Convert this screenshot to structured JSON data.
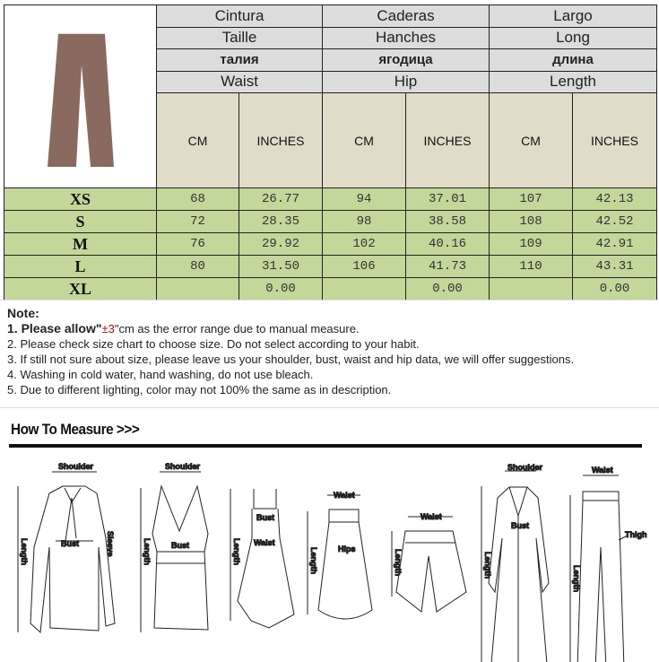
{
  "table": {
    "headers": {
      "spanish": [
        "Cintura",
        "Caderas",
        "Largo"
      ],
      "french": [
        "Taille",
        "Hanches",
        "Long"
      ],
      "russian": [
        "талия",
        "ягодица",
        "длина"
      ],
      "english": [
        "Waist",
        "Hip",
        "Length"
      ]
    },
    "units": [
      "CM",
      "INCHES",
      "CM",
      "INCHES",
      "CM",
      "INCHES"
    ],
    "rows": [
      {
        "size": "XS",
        "values": [
          "68",
          "26.77",
          "94",
          "37.01",
          "107",
          "42.13"
        ]
      },
      {
        "size": "S",
        "values": [
          "72",
          "28.35",
          "98",
          "38.58",
          "108",
          "42.52"
        ]
      },
      {
        "size": "M",
        "values": [
          "76",
          "29.92",
          "102",
          "40.16",
          "109",
          "42.91"
        ]
      },
      {
        "size": "L",
        "values": [
          "80",
          "31.50",
          "106",
          "41.73",
          "110",
          "43.31"
        ]
      },
      {
        "size": "XL",
        "values": [
          "",
          "0.00",
          "",
          "0.00",
          "",
          "0.00"
        ]
      }
    ],
    "colors": {
      "header": "#dcdcdc",
      "units": "#e0dcc8",
      "rows": "#c4d79b",
      "product": "#8a6a5f"
    }
  },
  "notes": {
    "title": "Note:",
    "line1_bold": "1. Please allow\"",
    "line1_red": "±3",
    "line1_rest": "\"cm as the error range due to manual measure.",
    "lines": [
      "2. Please check size chart to choose size. Do not select according to your habit.",
      "3. If still not sure about size, please leave us your shoulder, bust, waist and hip data, we will offer suggestions.",
      "4. Washing in cold water, hand washing, do not use bleach.",
      "5. Due to different lighting,  color may not 100% the same as in description."
    ]
  },
  "how_to_measure": {
    "title": "How To Measure >>>",
    "labels": {
      "shirt": [
        "Shoulder",
        "Bust",
        "Length",
        "Sleeve"
      ],
      "tank": [
        "Shoulder",
        "Bust",
        "Length"
      ],
      "dress": [
        "Bust",
        "Waist",
        "Length"
      ],
      "skirt": [
        "Waist",
        "Hips",
        "Length"
      ],
      "shorts": [
        "Waist",
        "Length"
      ],
      "coat": [
        "Shoulder",
        "Bust",
        "Length"
      ],
      "pants": [
        "Waist",
        "Thigh",
        "Length"
      ]
    }
  }
}
